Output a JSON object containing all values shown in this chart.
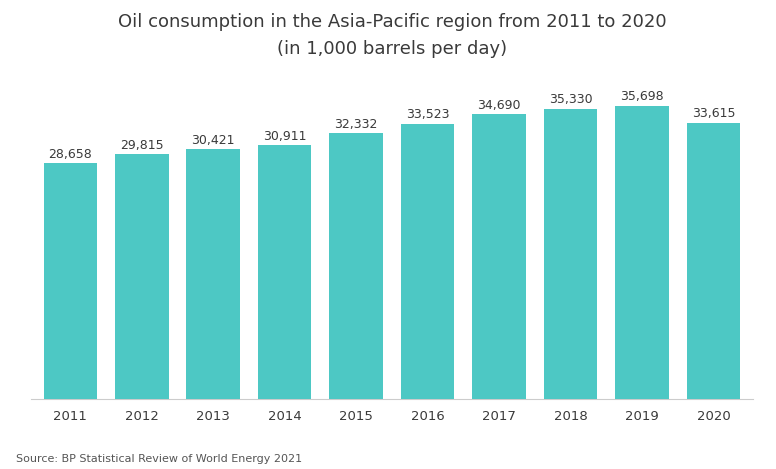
{
  "categories": [
    "2011",
    "2012",
    "2013",
    "2014",
    "2015",
    "2016",
    "2017",
    "2018",
    "2019",
    "2020"
  ],
  "values": [
    28658,
    29815,
    30421,
    30911,
    32332,
    33523,
    34690,
    35330,
    35698,
    33615
  ],
  "bar_color": "#4DC8C4",
  "title_line1": "Oil consumption in the Asia-Pacific region from 2011 to 2020",
  "title_line2": "(in 1,000 barrels per day)",
  "source_text": "Source: BP Statistical Review of World Energy 2021",
  "label_color": "#3a3a3a",
  "background_color": "#ffffff",
  "ylim": [
    0,
    40000
  ],
  "bar_width": 0.75,
  "label_fontsize": 9.0,
  "tick_fontsize": 9.5,
  "title_fontsize": 13.0
}
